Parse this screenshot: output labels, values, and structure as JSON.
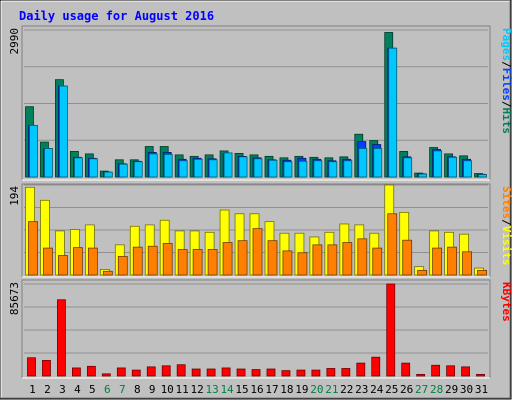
{
  "window": {
    "background": "#c0c0c0"
  },
  "colors": {
    "hits": "#00805c",
    "files": "#0040ff",
    "pages": "#00c8ff",
    "visits": "#ffff00",
    "sites": "#ff8000",
    "kbytes": "#ff0000",
    "weekend_label": "#008040",
    "weekday_label": "#000000",
    "title": "#0000ff"
  },
  "chart_data": {
    "type": "bar",
    "title": "Daily usage for August 2016",
    "categories": [
      "1",
      "2",
      "3",
      "4",
      "5",
      "6",
      "7",
      "8",
      "9",
      "10",
      "11",
      "12",
      "13",
      "14",
      "15",
      "16",
      "17",
      "18",
      "19",
      "20",
      "21",
      "22",
      "23",
      "24",
      "25",
      "26",
      "27",
      "28",
      "29",
      "30",
      "31"
    ],
    "weekend_days": [
      "6",
      "7",
      "13",
      "14",
      "20",
      "21",
      "27",
      "28"
    ],
    "panels": [
      {
        "name": "hits-files-pages",
        "ylabel_top": "2990",
        "ylim": [
          0,
          2990
        ],
        "side_legend": [
          {
            "text": "Hits",
            "color": "#00805c"
          },
          {
            "text": "/",
            "color": "#000000"
          },
          {
            "text": "Files",
            "color": "#0040ff"
          },
          {
            "text": "/",
            "color": "#000000"
          },
          {
            "text": "Pages",
            "color": "#00c8ff"
          }
        ],
        "series": [
          {
            "name": "Hits",
            "values": [
              1430,
              710,
              1980,
              520,
              470,
              120,
              350,
              350,
              620,
              620,
              450,
              420,
              450,
              530,
              480,
              450,
              420,
              390,
              420,
              400,
              390,
              410,
              870,
              740,
              2940,
              520,
              80,
              600,
              470,
              430,
              70
            ]
          },
          {
            "name": "Files",
            "values": [
              1050,
              580,
              1850,
              400,
              380,
              100,
              270,
              320,
              500,
              500,
              360,
              380,
              370,
              470,
              420,
              390,
              350,
              340,
              380,
              360,
              330,
              360,
              720,
              660,
              2620,
              410,
              65,
              560,
              410,
              360,
              55
            ]
          },
          {
            "name": "Pages",
            "values": [
              1050,
              580,
              1850,
              390,
              370,
              100,
              260,
              310,
              470,
              460,
              330,
              360,
              350,
              490,
              410,
              370,
              340,
              310,
              320,
              330,
              310,
              330,
              580,
              580,
              2620,
              390,
              60,
              530,
              400,
              330,
              50
            ]
          }
        ]
      },
      {
        "name": "visits-sites",
        "ylabel_top": "194",
        "ylim": [
          0,
          194
        ],
        "side_legend": [
          {
            "text": "Visits",
            "color": "#ffff00"
          },
          {
            "text": "/",
            "color": "#000000"
          },
          {
            "text": "Sites",
            "color": "#ff8000"
          }
        ],
        "series": [
          {
            "name": "Visits",
            "values": [
              189,
              161,
              95,
              98,
              108,
              12,
              65,
              105,
              108,
              118,
              95,
              95,
              92,
              140,
              132,
              132,
              115,
              90,
              90,
              82,
              92,
              110,
              108,
              90,
              194,
              135,
              18,
              95,
              92,
              88,
              15
            ]
          },
          {
            "name": "Sites",
            "values": [
              115,
              58,
              42,
              59,
              58,
              8,
              40,
              60,
              62,
              68,
              55,
              55,
              55,
              70,
              74,
              100,
              74,
              52,
              48,
              65,
              65,
              70,
              78,
              58,
              132,
              75,
              10,
              58,
              60,
              50,
              10
            ]
          }
        ]
      },
      {
        "name": "kbytes",
        "ylabel_top": "85673",
        "ylim": [
          0,
          85673
        ],
        "side_legend": [
          {
            "text": "KBytes",
            "color": "#ff0000"
          }
        ],
        "series": [
          {
            "name": "KBytes",
            "values": [
              17000,
              14500,
              71000,
              7500,
              9000,
              2000,
              7500,
              5500,
              8500,
              9500,
              10500,
              6500,
              6500,
              7500,
              6500,
              6000,
              6500,
              5000,
              5500,
              5500,
              7000,
              7000,
              12000,
              17500,
              85673,
              12000,
              1500,
              10000,
              9500,
              8500,
              1500
            ]
          }
        ]
      }
    ]
  }
}
